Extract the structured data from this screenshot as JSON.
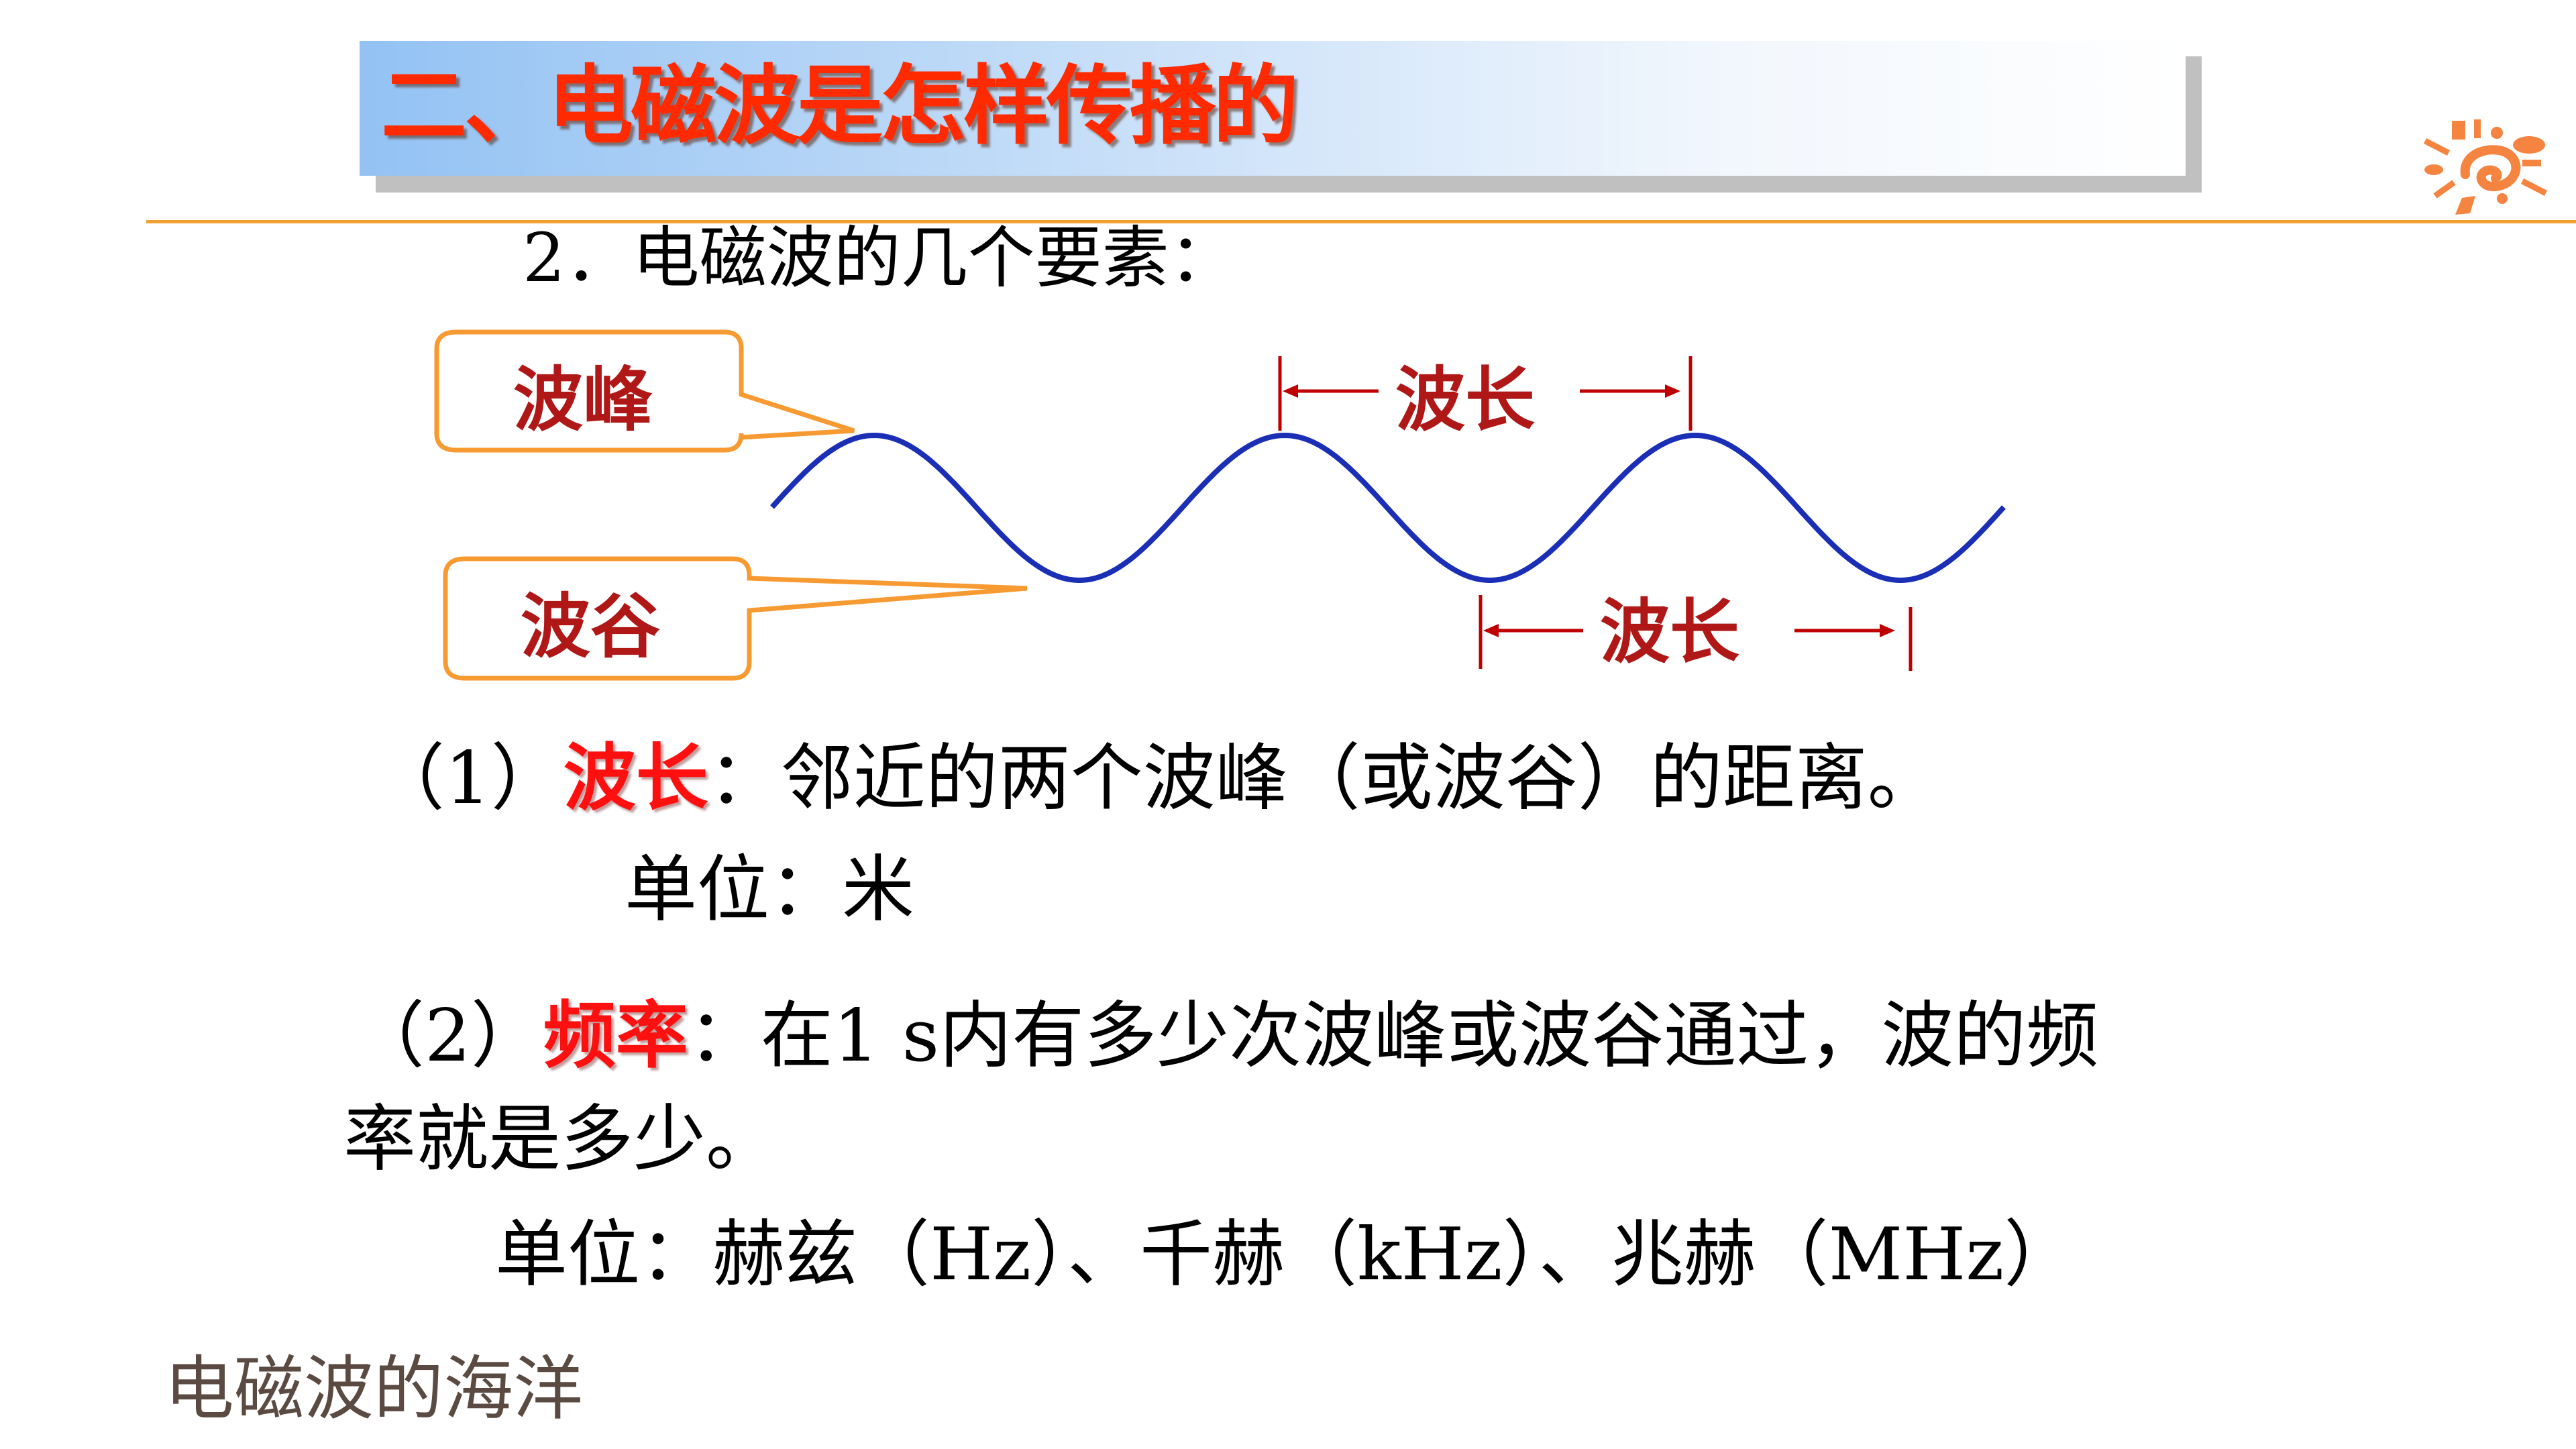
{
  "slide": {
    "title": "二、电磁波是怎样传播的",
    "subheading": "2．电磁波的几个要素：",
    "diagram": {
      "crest_label": "波峰",
      "trough_label": "波谷",
      "wavelength_label_top": "波长",
      "wavelength_label_bottom": "波长"
    },
    "definition1": {
      "prefix": "（1）",
      "term": "波长",
      "text": "：邻近的两个波峰（或波谷）的距离。",
      "unit": "单位：米"
    },
    "definition2": {
      "prefix": "（2）",
      "term": "频率",
      "text": "：在1 s内有多少次波峰或波谷通过，波的频",
      "text_cont": "率就是多少。",
      "unit": "单位：赫兹（Hz）、千赫（kHz）、兆赫（MHz）"
    },
    "footer": "电磁波的海洋"
  },
  "colors": {
    "title": "#ff2a00",
    "wave": "#1a2fb5",
    "callout_border": "#f79a32",
    "wavelength_marker": "#c00000",
    "highlight_term": "#ff1010",
    "rule": "#f0a030",
    "logo": "#f58440"
  },
  "icons": {
    "logo": "sun-spiral-logo"
  }
}
